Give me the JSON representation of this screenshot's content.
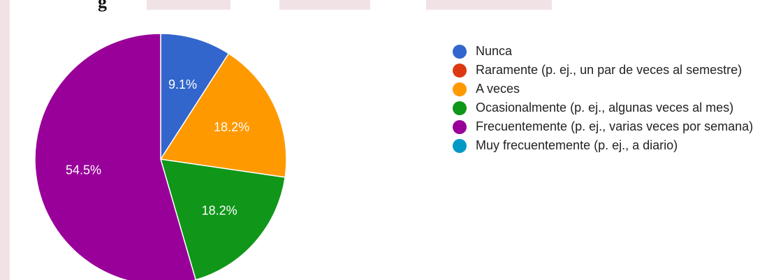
{
  "page_title_fragment": "g",
  "chart_data": {
    "type": "pie",
    "title": "",
    "legend_position": "right",
    "slices": [
      {
        "label": "Nunca",
        "value": 9.1,
        "value_label": "9.1%",
        "color": "#3366cc"
      },
      {
        "label": "Raramente (p. ej., un par de veces al semestre)",
        "value": 0,
        "value_label": "",
        "color": "#dc3912"
      },
      {
        "label": "A veces",
        "value": 18.2,
        "value_label": "18.2%",
        "color": "#ff9900"
      },
      {
        "label": "Ocasionalmente (p. ej., algunas veces al mes)",
        "value": 18.2,
        "value_label": "18.2%",
        "color": "#109618"
      },
      {
        "label": "Frecuentemente (p. ej., varias veces por semana)",
        "value": 54.5,
        "value_label": "54.5%",
        "color": "#990099"
      },
      {
        "label": "Muy frecuentemente (p. ej., a diario)",
        "value": 0,
        "value_label": "",
        "color": "#0099c6"
      }
    ]
  }
}
